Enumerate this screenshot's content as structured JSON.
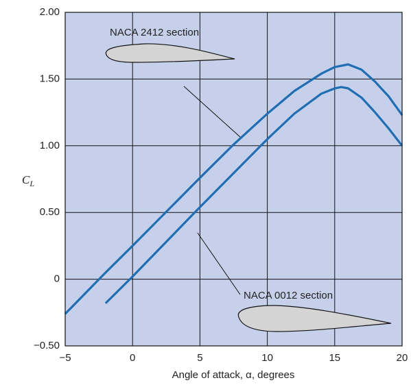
{
  "chart_data": {
    "type": "line",
    "xlabel": "Angle of attack, α, degrees",
    "ylabel": [
      "C",
      "L"
    ],
    "annotations": [
      "NACA 2412 section",
      "NACA 0012 section"
    ],
    "series": [
      {
        "name": "NACA 2412",
        "color": "#1f6db3",
        "x": [
          -5,
          -2,
          0,
          5,
          7.5,
          10,
          12,
          14,
          15,
          16,
          17,
          18,
          19,
          20
        ],
        "values": [
          -0.26,
          0.05,
          0.25,
          0.76,
          1.01,
          1.24,
          1.41,
          1.54,
          1.59,
          1.61,
          1.57,
          1.48,
          1.37,
          1.23
        ]
      },
      {
        "name": "NACA 0012",
        "color": "#1f6db3",
        "x": [
          -2,
          0,
          5,
          10,
          12,
          14,
          15,
          15.5,
          16,
          17,
          18,
          19,
          20
        ],
        "values": [
          -0.18,
          0.02,
          0.54,
          1.05,
          1.24,
          1.39,
          1.43,
          1.44,
          1.43,
          1.36,
          1.25,
          1.13,
          1.0
        ]
      }
    ],
    "xlim": [
      -5,
      20
    ],
    "ylim": [
      -0.5,
      2.0
    ],
    "xticks": [
      {
        "value": -5,
        "label": "−5"
      },
      0,
      5,
      10,
      15,
      20
    ],
    "yticks": [
      {
        "value": -0.5,
        "label": "−0.50"
      },
      0,
      {
        "value": 0.5,
        "label": "0.50"
      },
      {
        "value": 1.0,
        "label": "1.00"
      },
      {
        "value": 1.5,
        "label": "1.50"
      },
      {
        "value": 2.0,
        "label": "2.00"
      }
    ],
    "grid": true,
    "background": "#c6d0ea"
  }
}
